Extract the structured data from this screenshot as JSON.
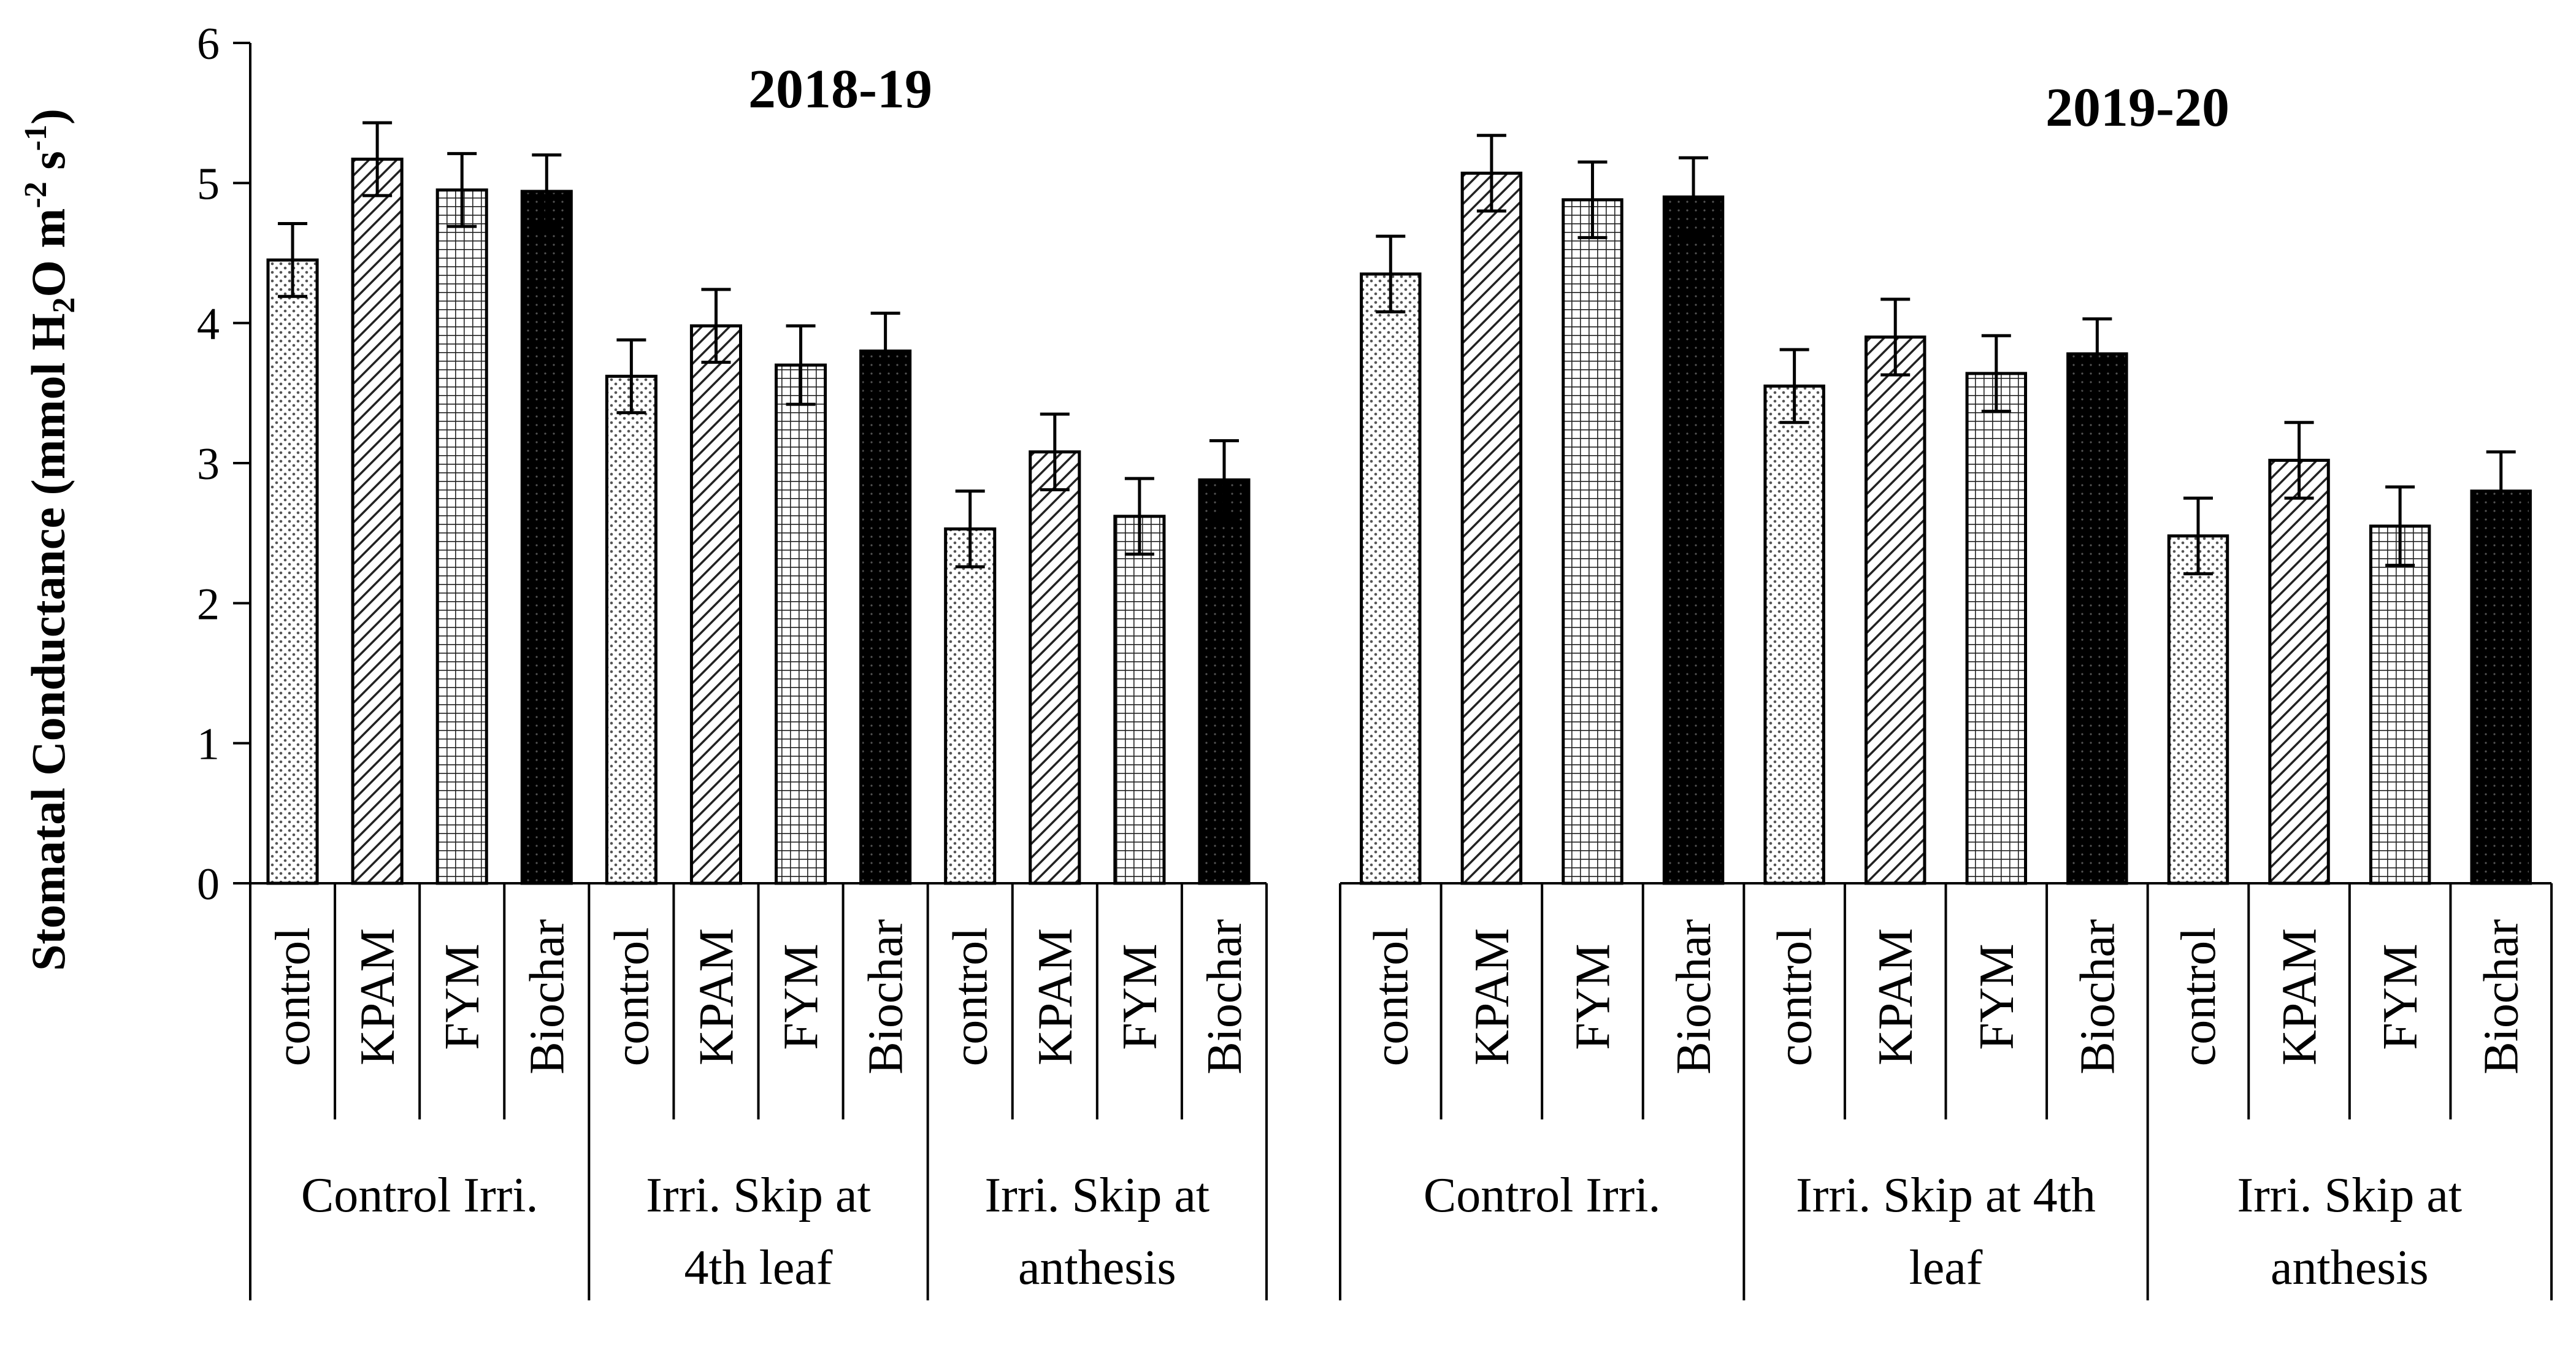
{
  "chart_data": {
    "type": "bar",
    "ylabel": {
      "main": "Stomatal Conductance (mmol H",
      "sub2": "2",
      "mid": "O m",
      "sup1": "-2",
      "mid2": " s",
      "sup2": "-1",
      "end": ")"
    },
    "ylim": [
      0,
      6
    ],
    "yticks": [
      "0",
      "1",
      "2",
      "3",
      "4",
      "5",
      "6"
    ],
    "grid": false,
    "treatments": [
      "control",
      "KPAM",
      "FYM",
      "Biochar"
    ],
    "treatment_patterns": [
      "dots",
      "diagonal",
      "grid",
      "solid"
    ],
    "panels": [
      {
        "title": "2018-19",
        "groups": [
          {
            "label_lines": [
              "Control Irri."
            ],
            "values": [
              4.45,
              5.17,
              4.95,
              4.94
            ],
            "errors": [
              0.26,
              0.26,
              0.26,
              0.26
            ]
          },
          {
            "label_lines": [
              "Irri. Skip at",
              "4th leaf"
            ],
            "values": [
              3.62,
              3.98,
              3.7,
              3.8
            ],
            "errors": [
              0.26,
              0.26,
              0.28,
              0.27
            ]
          },
          {
            "label_lines": [
              "Irri. Skip at",
              "anthesis"
            ],
            "values": [
              2.53,
              3.08,
              2.62,
              2.88
            ],
            "errors": [
              0.27,
              0.27,
              0.27,
              0.28
            ]
          }
        ]
      },
      {
        "title": "2019-20",
        "groups": [
          {
            "label_lines": [
              "Control Irri."
            ],
            "values": [
              4.35,
              5.07,
              4.88,
              4.9
            ],
            "errors": [
              0.27,
              0.27,
              0.27,
              0.28
            ]
          },
          {
            "label_lines": [
              "Irri. Skip at 4th",
              "leaf"
            ],
            "values": [
              3.55,
              3.9,
              3.64,
              3.78
            ],
            "errors": [
              0.26,
              0.27,
              0.27,
              0.25
            ]
          },
          {
            "label_lines": [
              "Irri. Skip at",
              "anthesis"
            ],
            "values": [
              2.48,
              3.02,
              2.55,
              2.8
            ],
            "errors": [
              0.27,
              0.27,
              0.28,
              0.28
            ]
          }
        ]
      }
    ]
  },
  "colors": {
    "axis": "#000000",
    "bar_fill_light": "#ffffff",
    "bar_fill_solid": "#000000",
    "pattern_ink": "#000000"
  }
}
